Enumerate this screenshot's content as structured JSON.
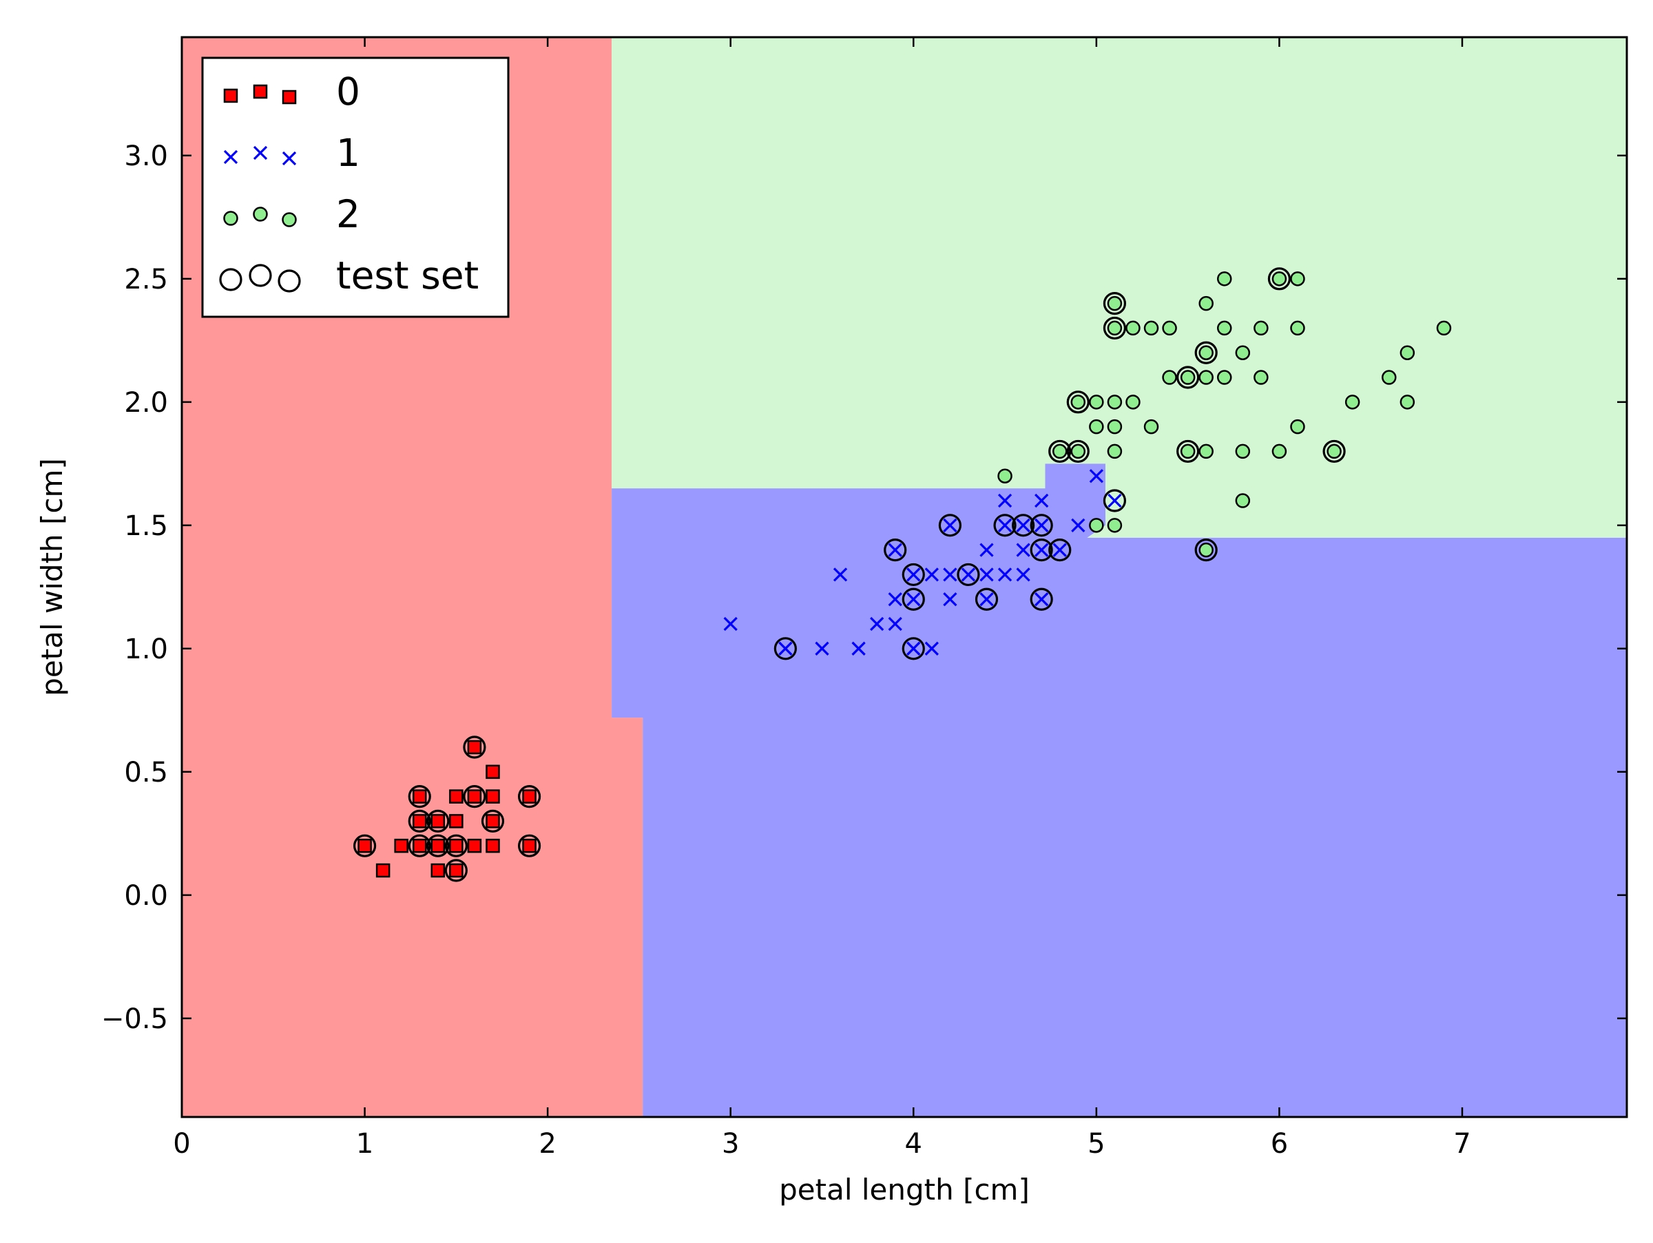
{
  "chart_data": {
    "type": "scatter",
    "xlabel": "petal length [cm]",
    "ylabel": "petal width [cm]",
    "xlim": [
      0,
      7.9
    ],
    "ylim": [
      -0.9,
      3.48
    ],
    "x_ticks": [
      0,
      1,
      2,
      3,
      4,
      5,
      6,
      7
    ],
    "y_ticks": [
      -0.5,
      0.0,
      0.5,
      1.0,
      1.5,
      2.0,
      2.5,
      3.0
    ],
    "x_tick_labels": [
      "0",
      "1",
      "2",
      "3",
      "4",
      "5",
      "6",
      "7"
    ],
    "y_tick_labels": [
      "−0.5",
      "0.0",
      "0.5",
      "1.0",
      "1.5",
      "2.0",
      "2.5",
      "3.0"
    ],
    "grid": false,
    "legend_position": "top-left",
    "decision_regions": [
      {
        "class": "0",
        "color": "#ff9999",
        "polygon": [
          [
            0,
            -0.9
          ],
          [
            0,
            3.48
          ],
          [
            2.35,
            3.48
          ],
          [
            2.35,
            0.72
          ],
          [
            2.52,
            0.72
          ],
          [
            2.52,
            -0.9
          ]
        ]
      },
      {
        "class": "1",
        "color": "#9999ff",
        "polygon": [
          [
            2.52,
            -0.9
          ],
          [
            2.52,
            0.72
          ],
          [
            2.35,
            0.72
          ],
          [
            2.35,
            1.65
          ],
          [
            4.72,
            1.65
          ],
          [
            4.72,
            1.75
          ],
          [
            5.05,
            1.75
          ],
          [
            5.05,
            1.5
          ],
          [
            4.95,
            1.45
          ],
          [
            7.9,
            1.45
          ],
          [
            7.9,
            -0.9
          ]
        ]
      },
      {
        "class": "2",
        "color": "#d3f7d3",
        "polygon": [
          [
            2.35,
            3.48
          ],
          [
            7.9,
            3.48
          ],
          [
            7.9,
            1.45
          ],
          [
            4.95,
            1.45
          ],
          [
            5.05,
            1.5
          ],
          [
            5.05,
            1.75
          ],
          [
            4.72,
            1.75
          ],
          [
            4.72,
            1.65
          ],
          [
            2.35,
            1.65
          ]
        ]
      }
    ],
    "series": [
      {
        "name": "0",
        "marker": "square",
        "color": "#ff0000",
        "points": [
          [
            1.0,
            0.2
          ],
          [
            1.1,
            0.1
          ],
          [
            1.2,
            0.2
          ],
          [
            1.3,
            0.2
          ],
          [
            1.3,
            0.3
          ],
          [
            1.3,
            0.4
          ],
          [
            1.4,
            0.1
          ],
          [
            1.4,
            0.2
          ],
          [
            1.4,
            0.3
          ],
          [
            1.5,
            0.1
          ],
          [
            1.5,
            0.2
          ],
          [
            1.5,
            0.3
          ],
          [
            1.5,
            0.4
          ],
          [
            1.6,
            0.2
          ],
          [
            1.6,
            0.4
          ],
          [
            1.6,
            0.6
          ],
          [
            1.7,
            0.2
          ],
          [
            1.7,
            0.3
          ],
          [
            1.7,
            0.4
          ],
          [
            1.7,
            0.5
          ],
          [
            1.9,
            0.2
          ],
          [
            1.9,
            0.4
          ]
        ]
      },
      {
        "name": "1",
        "marker": "x",
        "color": "#0000ff",
        "points": [
          [
            3.0,
            1.1
          ],
          [
            3.3,
            1.0
          ],
          [
            3.5,
            1.0
          ],
          [
            3.6,
            1.3
          ],
          [
            3.7,
            1.0
          ],
          [
            3.8,
            1.1
          ],
          [
            3.9,
            1.1
          ],
          [
            3.9,
            1.2
          ],
          [
            3.9,
            1.4
          ],
          [
            4.0,
            1.0
          ],
          [
            4.0,
            1.2
          ],
          [
            4.0,
            1.3
          ],
          [
            4.1,
            1.0
          ],
          [
            4.1,
            1.3
          ],
          [
            4.2,
            1.2
          ],
          [
            4.2,
            1.3
          ],
          [
            4.2,
            1.5
          ],
          [
            4.3,
            1.3
          ],
          [
            4.4,
            1.2
          ],
          [
            4.4,
            1.3
          ],
          [
            4.4,
            1.4
          ],
          [
            4.5,
            1.3
          ],
          [
            4.5,
            1.5
          ],
          [
            4.5,
            1.6
          ],
          [
            4.6,
            1.3
          ],
          [
            4.6,
            1.4
          ],
          [
            4.6,
            1.5
          ],
          [
            4.7,
            1.2
          ],
          [
            4.7,
            1.4
          ],
          [
            4.7,
            1.5
          ],
          [
            4.7,
            1.6
          ],
          [
            4.8,
            1.4
          ],
          [
            4.9,
            1.5
          ],
          [
            5.0,
            1.7
          ],
          [
            5.1,
            1.6
          ]
        ]
      },
      {
        "name": "2",
        "marker": "circle",
        "color": "#90ee90",
        "points": [
          [
            4.5,
            1.7
          ],
          [
            4.8,
            1.8
          ],
          [
            4.9,
            1.8
          ],
          [
            4.9,
            2.0
          ],
          [
            5.0,
            1.5
          ],
          [
            5.0,
            1.9
          ],
          [
            5.0,
            2.0
          ],
          [
            5.1,
            1.5
          ],
          [
            5.1,
            1.8
          ],
          [
            5.1,
            1.9
          ],
          [
            5.1,
            2.0
          ],
          [
            5.1,
            2.3
          ],
          [
            5.1,
            2.4
          ],
          [
            5.2,
            2.0
          ],
          [
            5.2,
            2.3
          ],
          [
            5.3,
            1.9
          ],
          [
            5.3,
            2.3
          ],
          [
            5.4,
            2.1
          ],
          [
            5.4,
            2.3
          ],
          [
            5.5,
            1.8
          ],
          [
            5.5,
            2.1
          ],
          [
            5.6,
            1.4
          ],
          [
            5.6,
            1.8
          ],
          [
            5.6,
            2.1
          ],
          [
            5.6,
            2.2
          ],
          [
            5.6,
            2.4
          ],
          [
            5.7,
            2.1
          ],
          [
            5.7,
            2.3
          ],
          [
            5.7,
            2.5
          ],
          [
            5.8,
            1.6
          ],
          [
            5.8,
            1.8
          ],
          [
            5.8,
            2.2
          ],
          [
            5.9,
            2.1
          ],
          [
            5.9,
            2.3
          ],
          [
            6.0,
            1.8
          ],
          [
            6.0,
            2.5
          ],
          [
            6.1,
            1.9
          ],
          [
            6.1,
            2.3
          ],
          [
            6.1,
            2.5
          ],
          [
            6.3,
            1.8
          ],
          [
            6.4,
            2.0
          ],
          [
            6.6,
            2.1
          ],
          [
            6.7,
            2.0
          ],
          [
            6.7,
            2.2
          ],
          [
            6.9,
            2.3
          ]
        ]
      }
    ],
    "test_set": {
      "name": "test set",
      "marker": "open-circle",
      "color": "#000000",
      "points": [
        [
          1.0,
          0.2
        ],
        [
          1.3,
          0.2
        ],
        [
          1.3,
          0.3
        ],
        [
          1.3,
          0.4
        ],
        [
          1.4,
          0.2
        ],
        [
          1.4,
          0.3
        ],
        [
          1.5,
          0.1
        ],
        [
          1.5,
          0.2
        ],
        [
          1.6,
          0.4
        ],
        [
          1.6,
          0.6
        ],
        [
          1.7,
          0.3
        ],
        [
          1.9,
          0.2
        ],
        [
          1.9,
          0.4
        ],
        [
          3.3,
          1.0
        ],
        [
          3.9,
          1.4
        ],
        [
          4.0,
          1.0
        ],
        [
          4.0,
          1.2
        ],
        [
          4.0,
          1.3
        ],
        [
          4.2,
          1.5
        ],
        [
          4.3,
          1.3
        ],
        [
          4.4,
          1.2
        ],
        [
          4.5,
          1.5
        ],
        [
          4.6,
          1.5
        ],
        [
          4.7,
          1.2
        ],
        [
          4.7,
          1.4
        ],
        [
          4.7,
          1.5
        ],
        [
          4.8,
          1.4
        ],
        [
          4.8,
          1.8
        ],
        [
          4.9,
          1.8
        ],
        [
          4.9,
          2.0
        ],
        [
          5.1,
          1.6
        ],
        [
          5.1,
          2.3
        ],
        [
          5.1,
          2.4
        ],
        [
          5.5,
          1.8
        ],
        [
          5.5,
          2.1
        ],
        [
          5.6,
          1.4
        ],
        [
          5.6,
          2.2
        ],
        [
          6.0,
          2.5
        ],
        [
          6.3,
          1.8
        ]
      ]
    }
  }
}
